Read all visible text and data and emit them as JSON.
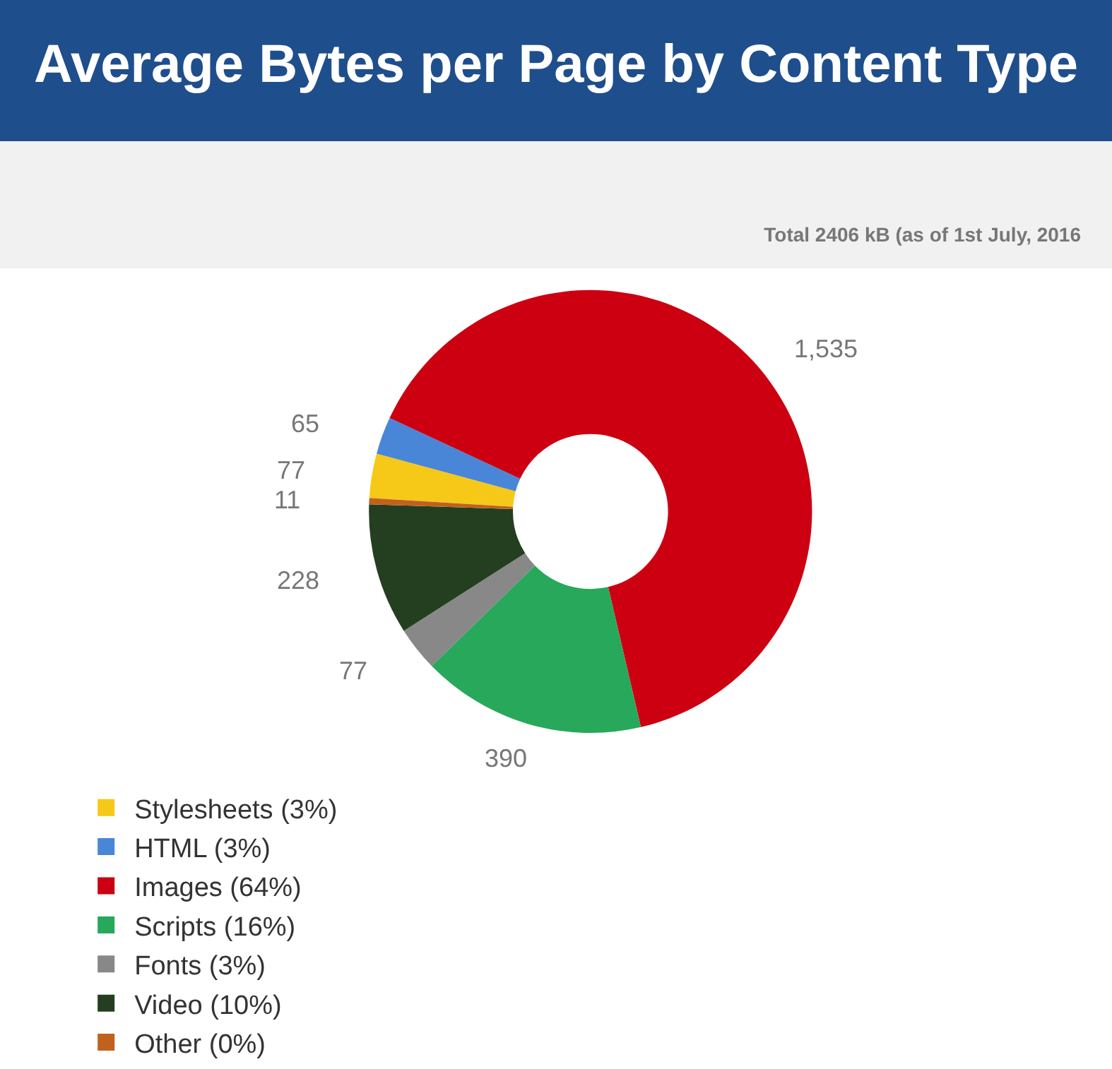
{
  "chart_data": {
    "type": "donut",
    "title": "Average Bytes per Page by Content Type",
    "subtitle": "Total 2406 kB (as of 1st July, 2016",
    "categories": [
      "Stylesheets (3%)",
      "HTML (3%)",
      "Images (64%)",
      "Scripts (16%)",
      "Fonts (3%)",
      "Video (10%)",
      "Other (0%)"
    ],
    "values": [
      77,
      65,
      1535,
      390,
      77,
      228,
      11
    ],
    "value_labels": [
      "77",
      "65",
      "1,535",
      "390",
      "77",
      "228",
      "11"
    ],
    "colors": [
      "#f6c918",
      "#4a86d8",
      "#cc0011",
      "#27a85a",
      "#888888",
      "#233f1f",
      "#c0621e"
    ],
    "legend": "bottom"
  }
}
